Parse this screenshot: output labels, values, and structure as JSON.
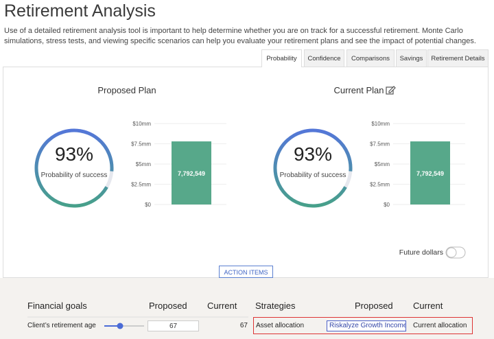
{
  "header": {
    "title": "Retirement Analysis",
    "description": "Use of a detailed retirement analysis tool is important to help determine whether you are on track for a successful retirement. Monte Carlo simulations, stress tests, and viewing specific scenarios can help you evaluate your retirement plans and see the impact of potential changes."
  },
  "tabs": [
    "Probability",
    "Confidence",
    "Comparisons",
    "Savings",
    "Retirement Details"
  ],
  "plans": [
    {
      "title": "Proposed Plan",
      "probability": {
        "value": 93,
        "label": "93%",
        "caption": "Probability of success"
      },
      "bar": {
        "value": 7792549,
        "value_label": "7,792,549",
        "color": "#57a88a",
        "ylim": [
          0,
          10000000
        ],
        "yticks": [
          {
            "value": 0,
            "label": "$0"
          },
          {
            "value": 2500000,
            "label": "$2.5mm"
          },
          {
            "value": 5000000,
            "label": "$5mm"
          },
          {
            "value": 7500000,
            "label": "$7.5mm"
          },
          {
            "value": 10000000,
            "label": "$10mm"
          }
        ]
      }
    },
    {
      "title": "Current Plan",
      "probability": {
        "value": 93,
        "label": "93%",
        "caption": "Probability of success"
      },
      "bar": {
        "value": 7792549,
        "value_label": "7,792,549",
        "color": "#57a88a",
        "ylim": [
          0,
          10000000
        ],
        "yticks": [
          {
            "value": 0,
            "label": "$0"
          },
          {
            "value": 2500000,
            "label": "$2.5mm"
          },
          {
            "value": 5000000,
            "label": "$5mm"
          },
          {
            "value": 7500000,
            "label": "$7.5mm"
          },
          {
            "value": 10000000,
            "label": "$10mm"
          }
        ]
      }
    }
  ],
  "future_dollars": "Future dollars",
  "action_items": "ACTION ITEMS",
  "goals": {
    "headers": [
      "Financial goals",
      "Proposed",
      "Current"
    ],
    "rows": [
      {
        "label": "Client’s retirement age",
        "proposed": 67,
        "current": 67
      }
    ]
  },
  "strategies": {
    "headers": [
      "Strategies",
      "Proposed",
      "Current"
    ],
    "rows": [
      {
        "label": "Asset allocation",
        "proposed": "Riskalyze Growth Income",
        "current": "Current allocation"
      }
    ]
  }
}
